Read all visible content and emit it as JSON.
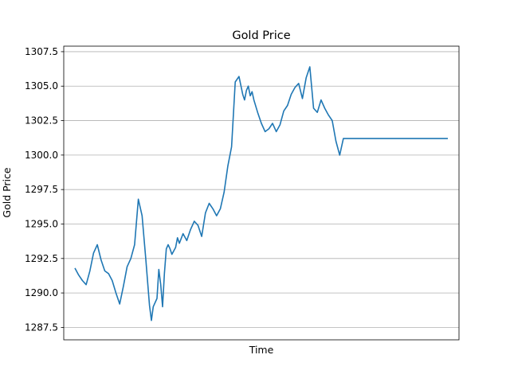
{
  "chart_data": {
    "type": "line",
    "title": "Gold Price",
    "xlabel": "Time",
    "ylabel": "Gold Price",
    "ylim": [
      1286.6,
      1307.9
    ],
    "xlim": [
      -0.03,
      1.03
    ],
    "x_ticks_shown": false,
    "grid": "horizontal",
    "legend": "none",
    "yticks": [
      1287.5,
      1290.0,
      1292.5,
      1295.0,
      1297.5,
      1300.0,
      1302.5,
      1305.0,
      1307.5
    ],
    "ytick_labels": [
      "1287.5",
      "1290.0",
      "1292.5",
      "1295.0",
      "1297.5",
      "1300.0",
      "1302.5",
      "1305.0",
      "1307.5"
    ],
    "line_color": "#1f77b4",
    "grid_color": "#b0b0b0",
    "series": [
      {
        "x": [
          0.0,
          0.01,
          0.02,
          0.03,
          0.04,
          0.05,
          0.06,
          0.07,
          0.08,
          0.09,
          0.1,
          0.11,
          0.12,
          0.13,
          0.14,
          0.15,
          0.16,
          0.17,
          0.18,
          0.19,
          0.2,
          0.205,
          0.21,
          0.22,
          0.225,
          0.23,
          0.235,
          0.24,
          0.245,
          0.25,
          0.255,
          0.26,
          0.27,
          0.275,
          0.28,
          0.29,
          0.3,
          0.31,
          0.32,
          0.33,
          0.34,
          0.35,
          0.36,
          0.37,
          0.38,
          0.39,
          0.4,
          0.41,
          0.42,
          0.43,
          0.44,
          0.45,
          0.455,
          0.46,
          0.465,
          0.47,
          0.475,
          0.48,
          0.49,
          0.5,
          0.51,
          0.52,
          0.53,
          0.54,
          0.55,
          0.56,
          0.57,
          0.58,
          0.59,
          0.6,
          0.61,
          0.62,
          0.63,
          0.64,
          0.65,
          0.66,
          0.67,
          0.68,
          0.69,
          0.7,
          0.71,
          0.72,
          0.73,
          0.74,
          0.75,
          0.76,
          0.77,
          0.78,
          0.79,
          0.8,
          0.81,
          1.0
        ],
        "y": [
          1291.8,
          1291.3,
          1290.9,
          1290.6,
          1291.6,
          1292.9,
          1293.5,
          1292.4,
          1291.6,
          1291.4,
          1290.9,
          1290.0,
          1289.2,
          1290.5,
          1291.9,
          1292.5,
          1293.5,
          1296.8,
          1295.6,
          1292.5,
          1289.1,
          1288.0,
          1289.0,
          1289.6,
          1291.7,
          1290.6,
          1289.0,
          1291.4,
          1293.2,
          1293.5,
          1293.2,
          1292.8,
          1293.3,
          1294.0,
          1293.6,
          1294.3,
          1293.8,
          1294.6,
          1295.2,
          1294.9,
          1294.1,
          1295.8,
          1296.5,
          1296.1,
          1295.6,
          1296.1,
          1297.3,
          1299.2,
          1300.6,
          1305.3,
          1305.7,
          1304.4,
          1304.0,
          1304.7,
          1305.0,
          1304.3,
          1304.6,
          1304.0,
          1303.1,
          1302.3,
          1301.7,
          1301.9,
          1302.3,
          1301.7,
          1302.2,
          1303.2,
          1303.6,
          1304.4,
          1304.9,
          1305.2,
          1304.1,
          1305.6,
          1306.4,
          1303.4,
          1303.1,
          1304.0,
          1303.4,
          1302.9,
          1302.5,
          1301.0,
          1300.0,
          1301.2,
          1301.2,
          1301.2,
          1301.2,
          1301.2,
          1301.2,
          1301.2,
          1301.2,
          1301.2,
          1301.2,
          1301.2
        ]
      }
    ]
  }
}
